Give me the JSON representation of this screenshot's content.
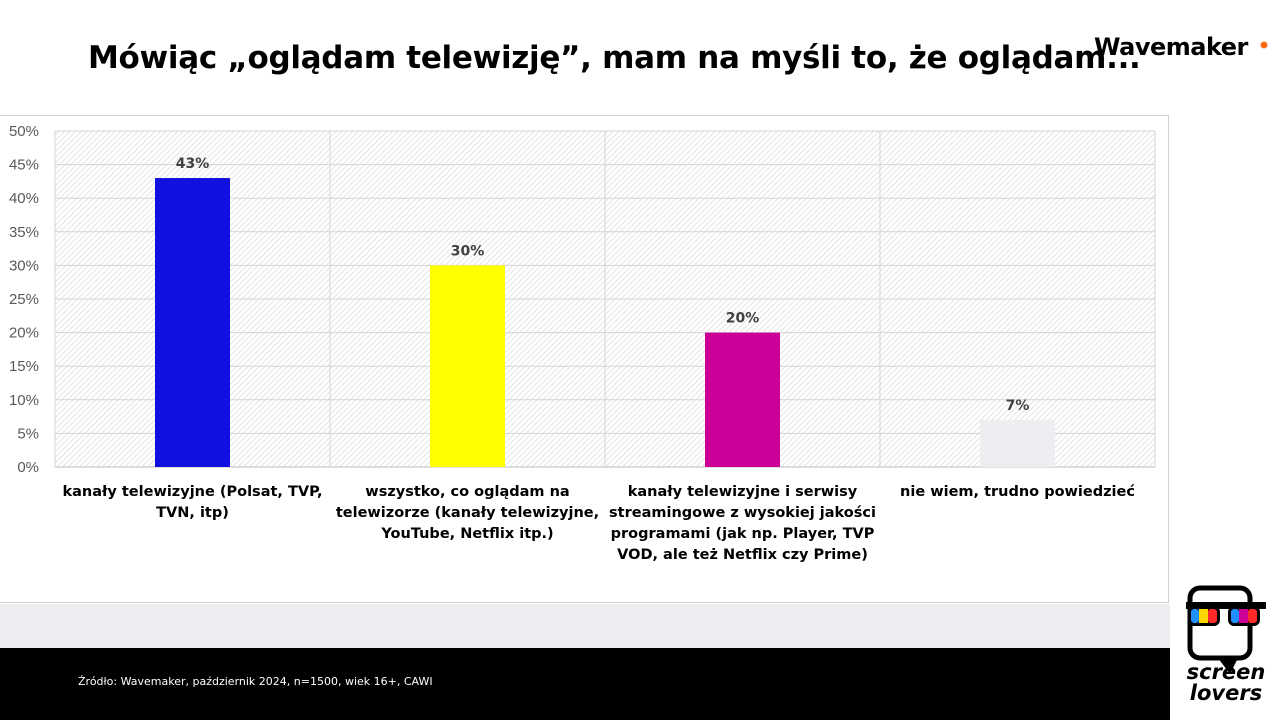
{
  "header": {
    "title": "Mówiąc „oglądam telewizję”, mam na myśli to, że oglądam...",
    "brand_text": "Wavemaker"
  },
  "footer": {
    "source": "Źródło: Wavemaker, październik 2024, n=1500, wiek 16+, CAWI"
  },
  "side_logo": {
    "line1": "screen",
    "line2": "lovers"
  },
  "colors": {
    "brand_dot": "#ff6a13",
    "footer_bg": "#000000",
    "strip_bg": "#eceef1"
  },
  "chart_data": {
    "type": "bar",
    "categories": [
      [
        "kanały telewizyjne (Polsat, TVP,",
        "TVN, itp)"
      ],
      [
        "wszystko, co oglądam na",
        "telewizorze (kanały telewizyjne,",
        "YouTube, Netflix itp.)"
      ],
      [
        "kanały telewizyjne i serwisy",
        "streamingowe z wysokiej jakości",
        "programami (jak np. Player, TVP",
        "VOD, ale też Netflix czy Prime)"
      ],
      [
        "nie wiem, trudno powiedzieć"
      ]
    ],
    "values": [
      43,
      30,
      20,
      7
    ],
    "data_labels": [
      "43%",
      "30%",
      "20%",
      "7%"
    ],
    "colors": [
      "#1010e0",
      "#ffff00",
      "#cc0099",
      "#eceef1"
    ],
    "ylim": [
      0,
      50
    ],
    "yticks": [
      "0%",
      "5%",
      "10%",
      "15%",
      "20%",
      "25%",
      "30%",
      "35%",
      "40%",
      "45%",
      "50%"
    ],
    "grid": true,
    "title": "",
    "xlabel": "",
    "ylabel": ""
  }
}
